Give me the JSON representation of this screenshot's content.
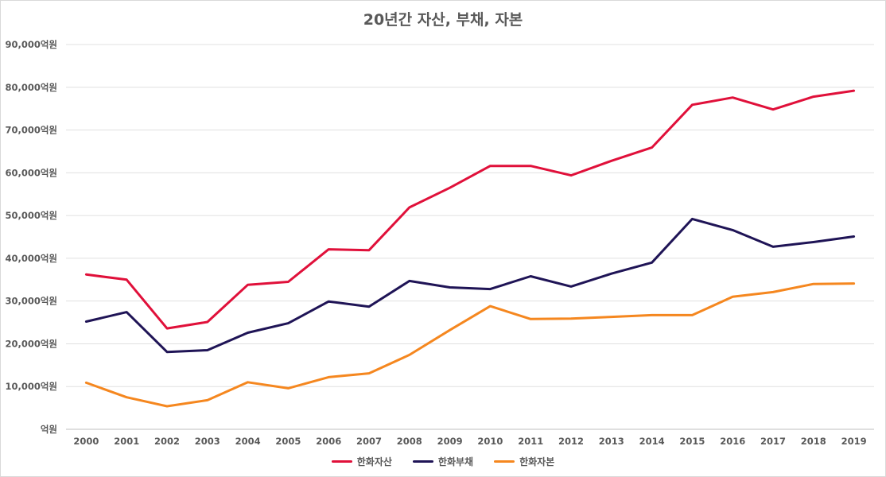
{
  "chart_data": {
    "type": "line",
    "title": "20년간 자산, 부채, 자본",
    "categories": [
      "2000",
      "2001",
      "2002",
      "2003",
      "2004",
      "2005",
      "2006",
      "2007",
      "2008",
      "2009",
      "2010",
      "2011",
      "2012",
      "2013",
      "2014",
      "2015",
      "2016",
      "2017",
      "2018",
      "2019"
    ],
    "y_ticks": [
      "억원",
      "10,000억원",
      "20,000억원",
      "30,000억원",
      "40,000억원",
      "50,000억원",
      "60,000억원",
      "70,000억원",
      "80,000억원",
      "90,000억원"
    ],
    "ylim": [
      0,
      90000
    ],
    "grid": true,
    "legend_position": "bottom",
    "series": [
      {
        "name": "한화자산",
        "color": "#e0103a",
        "values": [
          36200,
          35000,
          23600,
          25100,
          33800,
          34500,
          42100,
          41900,
          51900,
          56500,
          61600,
          61600,
          59400,
          62800,
          65900,
          75900,
          77600,
          74800,
          77800,
          79200
        ]
      },
      {
        "name": "한화부채",
        "color": "#1f1456",
        "values": [
          25200,
          27400,
          18100,
          18500,
          22600,
          24800,
          29900,
          28700,
          34700,
          33200,
          32800,
          35800,
          33400,
          36400,
          39000,
          49200,
          46600,
          42700,
          43800,
          45100
        ]
      },
      {
        "name": "한화자본",
        "color": "#f5871f",
        "values": [
          10900,
          7500,
          5400,
          6800,
          11000,
          9600,
          12200,
          13100,
          17400,
          23200,
          28800,
          25800,
          25900,
          26300,
          26700,
          26700,
          31000,
          32100,
          34000,
          34100
        ]
      }
    ]
  }
}
